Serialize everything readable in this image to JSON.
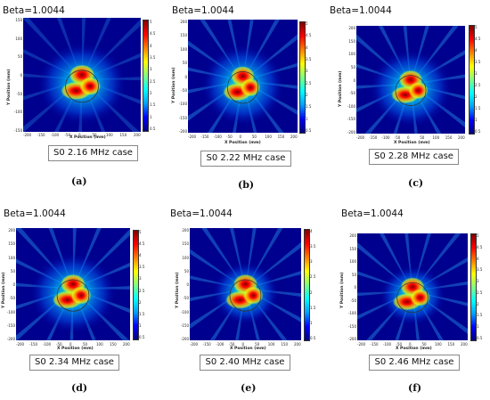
{
  "figure": {
    "panels": [
      {
        "beta": "Beta=1.0044",
        "case": "S0 2.16 MHz case",
        "letter": "(a)",
        "x_label": "X Position (mm)",
        "y_label": "Y Position (mm)",
        "xticks": [
          "-200",
          "-150",
          "-100",
          "-50",
          "0",
          "50",
          "100",
          "150",
          "200"
        ],
        "yticks": [
          "150",
          "100",
          "50",
          "0",
          "-50",
          "-100",
          "-150"
        ],
        "cbticks": [
          "5",
          "4.5",
          "4",
          "3.5",
          "3",
          "2.5",
          "2",
          "1.5",
          "1",
          "0.5"
        ]
      },
      {
        "beta": "Beta=1.0044",
        "case": "S0 2.22 MHz case",
        "letter": "(b)",
        "x_label": "X Position (mm)",
        "y_label": "Y Position (mm)",
        "xticks": [
          "-200",
          "-150",
          "-100",
          "-50",
          "0",
          "50",
          "100",
          "150",
          "200"
        ],
        "yticks": [
          "200",
          "150",
          "100",
          "50",
          "0",
          "-50",
          "-100",
          "-150",
          "-200"
        ],
        "cbticks": [
          "5",
          "4.5",
          "4",
          "3.5",
          "3",
          "2.5",
          "2",
          "1.5",
          "1",
          "0.5"
        ]
      },
      {
        "beta": "Beta=1.0044",
        "case": "S0 2.28 MHz case",
        "letter": "(c)",
        "x_label": "X Position (mm)",
        "y_label": "Y Position (mm)",
        "xticks": [
          "-200",
          "-150",
          "-100",
          "-50",
          "0",
          "50",
          "100",
          "150",
          "200"
        ],
        "yticks": [
          "200",
          "150",
          "100",
          "50",
          "0",
          "-50",
          "-100",
          "-150",
          "-200"
        ],
        "cbticks": [
          "5",
          "4.5",
          "4",
          "3.5",
          "3",
          "2.5",
          "2",
          "1.5",
          "1",
          "0.5"
        ]
      },
      {
        "beta": "Beta=1.0044",
        "case": "S0 2.34 MHz case",
        "letter": "(d)",
        "x_label": "X Position (mm)",
        "y_label": "Y Position (mm)",
        "xticks": [
          "-200",
          "-150",
          "-100",
          "-50",
          "0",
          "50",
          "100",
          "150",
          "200"
        ],
        "yticks": [
          "200",
          "150",
          "100",
          "50",
          "0",
          "-50",
          "-100",
          "-150",
          "-200"
        ],
        "cbticks": [
          "5",
          "4.5",
          "4",
          "3.5",
          "3",
          "2.5",
          "2",
          "1.5",
          "1",
          "0.5"
        ]
      },
      {
        "beta": "Beta=1.0044",
        "case": "S0 2.40 MHz case",
        "letter": "(e)",
        "x_label": "X Position (mm)",
        "y_label": "Y Position (mm)",
        "xticks": [
          "-200",
          "-150",
          "-100",
          "-50",
          "0",
          "50",
          "100",
          "150",
          "200"
        ],
        "yticks": [
          "200",
          "150",
          "100",
          "50",
          "0",
          "-50",
          "-100",
          "-150",
          "-200"
        ],
        "cbticks": [
          "4",
          "3.5",
          "3",
          "2.5",
          "2",
          "1.5",
          "1",
          "0.5"
        ]
      },
      {
        "beta": "Beta=1.0044",
        "case": "S0 2.46 MHz case",
        "letter": "(f)",
        "x_label": "X Position (mm)",
        "y_label": "Y Position (mm)",
        "xticks": [
          "-200",
          "-150",
          "-100",
          "-50",
          "0",
          "50",
          "100",
          "150",
          "200"
        ],
        "yticks": [
          "200",
          "150",
          "100",
          "50",
          "0",
          "-50",
          "-100",
          "-150",
          "-200"
        ],
        "cbticks": [
          "5",
          "4.5",
          "4",
          "3.5",
          "3",
          "2.5",
          "2",
          "1.5",
          "1",
          "0.5"
        ]
      }
    ]
  }
}
